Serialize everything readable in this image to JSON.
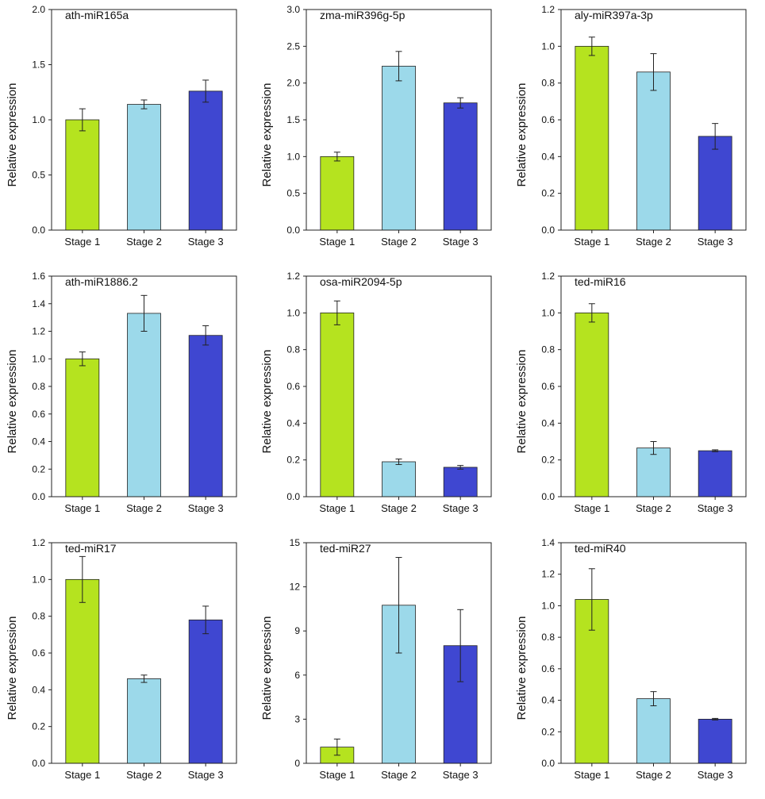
{
  "colors": {
    "stage1": "#b5e31f",
    "stage2": "#9cd9ea",
    "stage3": "#3f47d1"
  },
  "chart_data": [
    {
      "type": "bar",
      "title": "ath-miR165a",
      "ylabel": "Relative expression",
      "xlabel": "",
      "categories": [
        "Stage 1",
        "Stage 2",
        "Stage 3"
      ],
      "values": [
        1.0,
        1.14,
        1.26
      ],
      "errors": [
        0.1,
        0.04,
        0.1
      ],
      "ylim": [
        0,
        2.0
      ],
      "yticks": [
        0,
        0.5,
        1.0,
        1.5,
        2.0
      ],
      "ytick_labels": [
        "0.0",
        "0.5",
        "1.0",
        "1.5",
        "2.0"
      ]
    },
    {
      "type": "bar",
      "title": "zma-miR396g-5p",
      "ylabel": "Relative expression",
      "xlabel": "",
      "categories": [
        "Stage 1",
        "Stage 2",
        "Stage 3"
      ],
      "values": [
        1.0,
        2.23,
        1.73
      ],
      "errors": [
        0.06,
        0.2,
        0.07
      ],
      "ylim": [
        0,
        3.0
      ],
      "yticks": [
        0,
        0.5,
        1.0,
        1.5,
        2.0,
        2.5,
        3.0
      ],
      "ytick_labels": [
        "0.0",
        "0.5",
        "1.0",
        "1.5",
        "2.0",
        "2.5",
        "3.0"
      ]
    },
    {
      "type": "bar",
      "title": "aly-miR397a-3p",
      "ylabel": "Relative expression",
      "xlabel": "",
      "categories": [
        "Stage 1",
        "Stage 2",
        "Stage 3"
      ],
      "values": [
        1.0,
        0.86,
        0.51
      ],
      "errors": [
        0.05,
        0.1,
        0.07
      ],
      "ylim": [
        0,
        1.2
      ],
      "yticks": [
        0,
        0.2,
        0.4,
        0.6,
        0.8,
        1.0,
        1.2
      ],
      "ytick_labels": [
        "0.0",
        "0.2",
        "0.4",
        "0.6",
        "0.8",
        "1.0",
        "1.2"
      ]
    },
    {
      "type": "bar",
      "title": "ath-miR1886.2",
      "ylabel": "Relative expression",
      "xlabel": "",
      "categories": [
        "Stage 1",
        "Stage 2",
        "Stage 3"
      ],
      "values": [
        1.0,
        1.33,
        1.17
      ],
      "errors": [
        0.05,
        0.13,
        0.07
      ],
      "ylim": [
        0,
        1.6
      ],
      "yticks": [
        0,
        0.2,
        0.4,
        0.6,
        0.8,
        1.0,
        1.2,
        1.4,
        1.6
      ],
      "ytick_labels": [
        "0.0",
        "0.2",
        "0.4",
        "0.6",
        "0.8",
        "1.0",
        "1.2",
        "1.4",
        "1.6"
      ]
    },
    {
      "type": "bar",
      "title": "osa-miR2094-5p",
      "ylabel": "Relative expression",
      "xlabel": "",
      "categories": [
        "Stage 1",
        "Stage 2",
        "Stage 3"
      ],
      "values": [
        1.0,
        0.19,
        0.16
      ],
      "errors": [
        0.065,
        0.015,
        0.01
      ],
      "ylim": [
        0,
        1.2
      ],
      "yticks": [
        0,
        0.2,
        0.4,
        0.6,
        0.8,
        1.0,
        1.2
      ],
      "ytick_labels": [
        "0.0",
        "0.2",
        "0.4",
        "0.6",
        "0.8",
        "1.0",
        "1.2"
      ]
    },
    {
      "type": "bar",
      "title": "ted-miR16",
      "ylabel": "Relative expression",
      "xlabel": "",
      "categories": [
        "Stage 1",
        "Stage 2",
        "Stage 3"
      ],
      "values": [
        1.0,
        0.265,
        0.25
      ],
      "errors": [
        0.05,
        0.035,
        0.005
      ],
      "ylim": [
        0,
        1.2
      ],
      "yticks": [
        0,
        0.2,
        0.4,
        0.6,
        0.8,
        1.0,
        1.2
      ],
      "ytick_labels": [
        "0.0",
        "0.2",
        "0.4",
        "0.6",
        "0.8",
        "1.0",
        "1.2"
      ]
    },
    {
      "type": "bar",
      "title": "ted-miR17",
      "ylabel": "Relative expression",
      "xlabel": "",
      "categories": [
        "Stage 1",
        "Stage 2",
        "Stage 3"
      ],
      "values": [
        1.0,
        0.46,
        0.78
      ],
      "errors": [
        0.125,
        0.02,
        0.075
      ],
      "ylim": [
        0,
        1.2
      ],
      "yticks": [
        0,
        0.2,
        0.4,
        0.6,
        0.8,
        1.0,
        1.2
      ],
      "ytick_labels": [
        "0.0",
        "0.2",
        "0.4",
        "0.6",
        "0.8",
        "1.0",
        "1.2"
      ]
    },
    {
      "type": "bar",
      "title": "ted-miR27",
      "ylabel": "Relative expression",
      "xlabel": "",
      "categories": [
        "Stage 1",
        "Stage 2",
        "Stage 3"
      ],
      "values": [
        1.1,
        10.75,
        8.0
      ],
      "errors": [
        0.55,
        3.25,
        2.45
      ],
      "ylim": [
        0,
        15
      ],
      "yticks": [
        0,
        3,
        6,
        9,
        12,
        15
      ],
      "ytick_labels": [
        "0",
        "3",
        "6",
        "9",
        "12",
        "15"
      ]
    },
    {
      "type": "bar",
      "title": "ted-miR40",
      "ylabel": "Relative expression",
      "xlabel": "",
      "categories": [
        "Stage 1",
        "Stage 2",
        "Stage 3"
      ],
      "values": [
        1.04,
        0.41,
        0.28
      ],
      "errors": [
        0.195,
        0.045,
        0.005
      ],
      "ylim": [
        0,
        1.4
      ],
      "yticks": [
        0,
        0.2,
        0.4,
        0.6,
        0.8,
        1.0,
        1.2,
        1.4
      ],
      "ytick_labels": [
        "0.0",
        "0.2",
        "0.4",
        "0.6",
        "0.8",
        "1.0",
        "1.2",
        "1.4"
      ]
    }
  ]
}
